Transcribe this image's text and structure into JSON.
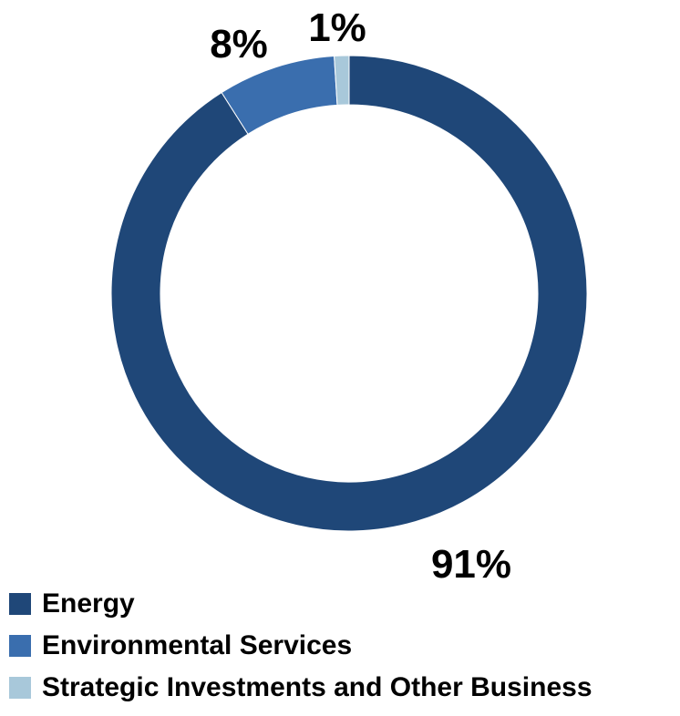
{
  "chart_data": {
    "type": "pie",
    "variant": "donut",
    "categories": [
      "Energy",
      "Environmental Services",
      "Strategic Investments and Other Business"
    ],
    "values": [
      91,
      8,
      1
    ],
    "labels": [
      "91%",
      "8%",
      "1%"
    ],
    "colors": [
      "#1F4778",
      "#3A6EAE",
      "#A8C8DA"
    ],
    "legend_position": "bottom-left"
  }
}
